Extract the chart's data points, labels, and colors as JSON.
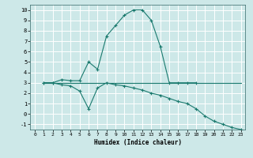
{
  "xlabel": "Humidex (Indice chaleur)",
  "bg_color": "#cde8e8",
  "grid_color": "#ffffff",
  "line_color": "#1a7a6e",
  "xlim": [
    -0.5,
    23.5
  ],
  "ylim": [
    -1.5,
    10.5
  ],
  "xticks": [
    0,
    1,
    2,
    3,
    4,
    5,
    6,
    7,
    8,
    9,
    10,
    11,
    12,
    13,
    14,
    15,
    16,
    17,
    18,
    19,
    20,
    21,
    22,
    23
  ],
  "yticks": [
    -1,
    0,
    1,
    2,
    3,
    4,
    5,
    6,
    7,
    8,
    9,
    10
  ],
  "series1_x": [
    1,
    2,
    3,
    4,
    5,
    6,
    7,
    8,
    9,
    10,
    11,
    12,
    13,
    14,
    15,
    16,
    17,
    18
  ],
  "series1_y": [
    3,
    3,
    3.3,
    3.2,
    3.2,
    5.0,
    4.3,
    7.5,
    8.5,
    9.5,
    10.0,
    10.0,
    9.0,
    6.5,
    3.0,
    3.0,
    3.0,
    3.0
  ],
  "series2_x": [
    1,
    2,
    3,
    4,
    5,
    6,
    7,
    8,
    9,
    10,
    11,
    12,
    13,
    14,
    15,
    16,
    17,
    18,
    19,
    20,
    21,
    22,
    23
  ],
  "series2_y": [
    3,
    3,
    3,
    3,
    3,
    3,
    3,
    3,
    3,
    3,
    3,
    3,
    3,
    3,
    3,
    3,
    3,
    3,
    3,
    3,
    3,
    3,
    3
  ],
  "series3_x": [
    1,
    2,
    3,
    4,
    5,
    6,
    7,
    8,
    9,
    10,
    11,
    12,
    13,
    14,
    15,
    16,
    17,
    18,
    19,
    20,
    21,
    22,
    23
  ],
  "series3_y": [
    3,
    3,
    2.8,
    2.7,
    2.2,
    0.5,
    2.5,
    3.0,
    2.8,
    2.7,
    2.5,
    2.3,
    2.0,
    1.8,
    1.5,
    1.2,
    1.0,
    0.5,
    -0.2,
    -0.7,
    -1.0,
    -1.3,
    -1.5
  ]
}
